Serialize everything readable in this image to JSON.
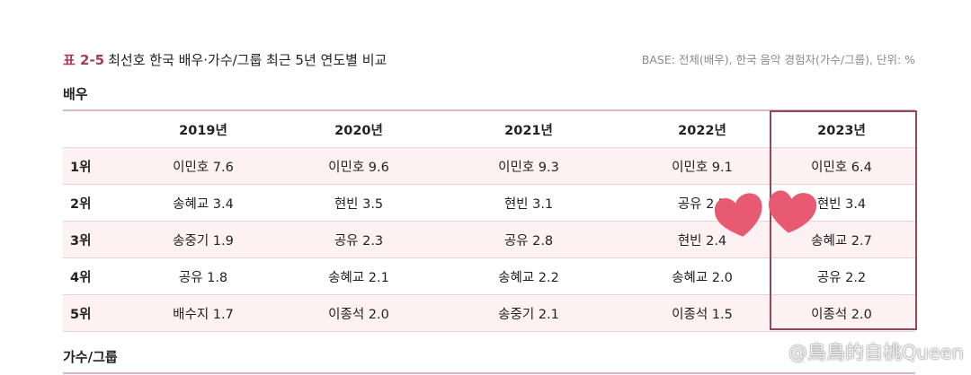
{
  "title": {
    "number": "표 2-5",
    "text": "최선호 한국 배우·가수/그룹 최근 5년 연도별 비교"
  },
  "base_note": "BASE: 전체(배우), 한국 음악 경험자(가수/그룹), 단위: %",
  "sections": {
    "actors": "배우",
    "singers": "가수/그룹"
  },
  "table": {
    "headers": [
      "",
      "2019년",
      "2020년",
      "2021년",
      "2022년",
      "2023년"
    ],
    "highlighted_column": "2023년",
    "rows": [
      {
        "rank": "1위",
        "cells": [
          "이민호 7.6",
          "이민호 9.6",
          "이민호 9.3",
          "이민호 9.1",
          "이민호 6.4"
        ]
      },
      {
        "rank": "2위",
        "cells": [
          "송혜교 3.4",
          "현빈 3.5",
          "현빈 3.1",
          "공유 2.7",
          "현빈 3.4"
        ]
      },
      {
        "rank": "3위",
        "cells": [
          "송중기 1.9",
          "공유 2.3",
          "공유 2.8",
          "현빈 2.4",
          "송혜교 2.7"
        ]
      },
      {
        "rank": "4위",
        "cells": [
          "공유 1.8",
          "송혜교 2.1",
          "송혜교 2.2",
          "송혜교 2.0",
          "공유 2.2"
        ]
      },
      {
        "rank": "5위",
        "cells": [
          "배수지 1.7",
          "이종석 2.0",
          "송중기 2.1",
          "이종석 1.5",
          "이종석 2.0"
        ]
      }
    ]
  },
  "colors": {
    "accent": "#a8385a",
    "highlight_border": "#8b4a60",
    "row_pink": "#fdf1f3",
    "heart": "#e85a72"
  },
  "watermark": "@鳥鳥的自桃Queen"
}
